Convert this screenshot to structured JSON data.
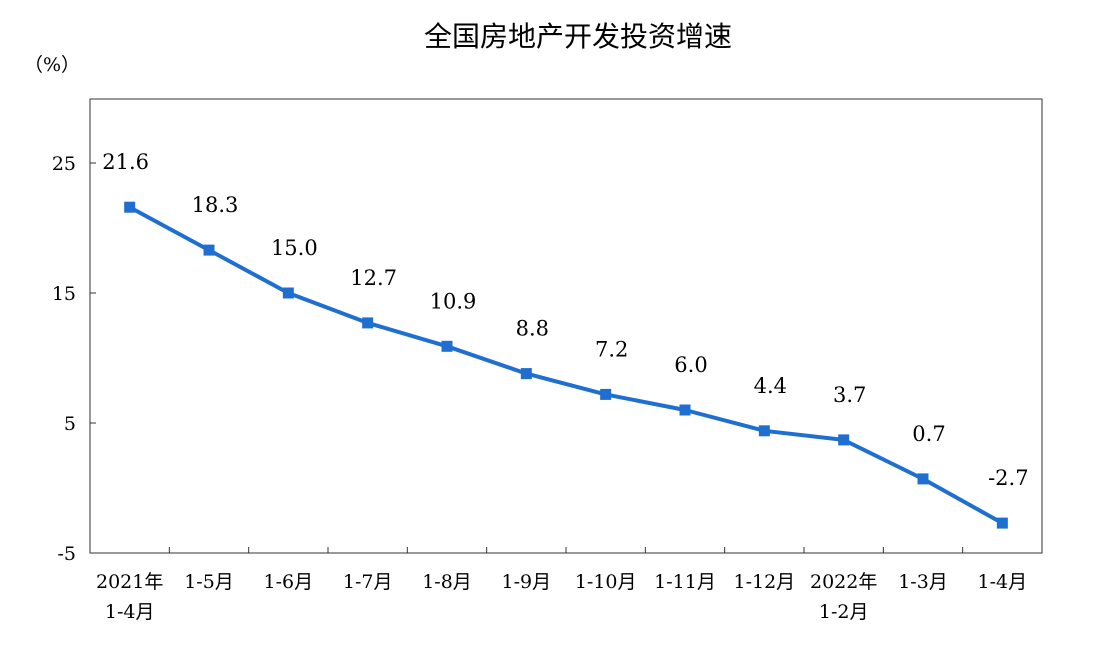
{
  "chart_data": {
    "type": "line",
    "title": "全国房地产开发投资增速",
    "ylabel": "（%）",
    "ylim": [
      -5,
      30
    ],
    "yticks": [
      25,
      15,
      5,
      -5
    ],
    "grid": false,
    "categories": [
      [
        "2021年",
        "1-4月"
      ],
      [
        "1-5月"
      ],
      [
        "1-6月"
      ],
      [
        "1-7月"
      ],
      [
        "1-8月"
      ],
      [
        "1-9月"
      ],
      [
        "1-10月"
      ],
      [
        "1-11月"
      ],
      [
        "1-12月"
      ],
      [
        "2022年",
        "1-2月"
      ],
      [
        "1-3月"
      ],
      [
        "1-4月"
      ]
    ],
    "values": [
      21.6,
      18.3,
      15.0,
      12.7,
      10.9,
      8.8,
      7.2,
      6.0,
      4.4,
      3.7,
      0.7,
      -2.7
    ],
    "data_labels": [
      "21.6",
      "18.3",
      "15.0",
      "12.7",
      "10.9",
      "8.8",
      "7.2",
      "6.0",
      "4.4",
      "3.7",
      "0.7",
      "-2.7"
    ],
    "colors": {
      "line": "#1f6fd0",
      "axis": "#000000"
    }
  }
}
